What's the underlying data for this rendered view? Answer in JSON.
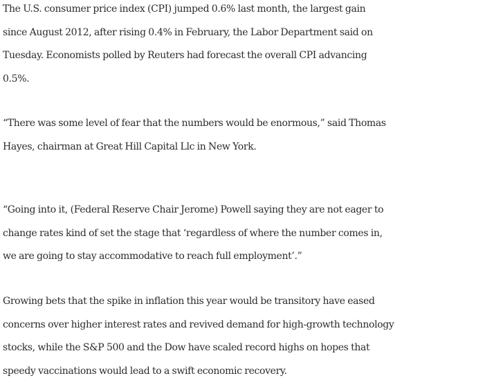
{
  "article": {
    "paragraphs": [
      {
        "lines": [
          "The U.S. consumer price index (CPI) jumped 0.6% last month, the largest gain",
          "since August 2012, after rising 0.4% in February, the Labor Department said on",
          "Tuesday. Economists polled by Reuters had forecast the overall CPI advancing",
          "0.5%."
        ]
      },
      {
        "lines": [
          "“There was some level of fear that the numbers would be enormous,” said Thomas",
          "Hayes, chairman at Great Hill Capital Llc in New York."
        ]
      },
      {
        "lines": [
          "“Going into it, (Federal Reserve Chair Jerome) Powell saying they are not eager to",
          "change rates kind of set the stage that ‘regardless of where the number comes in,",
          "we are going to stay accommodative to reach full employment’.”"
        ]
      },
      {
        "lines": [
          "Growing bets that the spike in inflation this year would be transitory have eased",
          "concerns over higher interest rates and revived demand for high-growth technology",
          "stocks, while the S&P 500 and the Dow have scaled record highs on hopes that",
          "speedy vaccinations would lead to a swift economic recovery."
        ]
      }
    ]
  }
}
